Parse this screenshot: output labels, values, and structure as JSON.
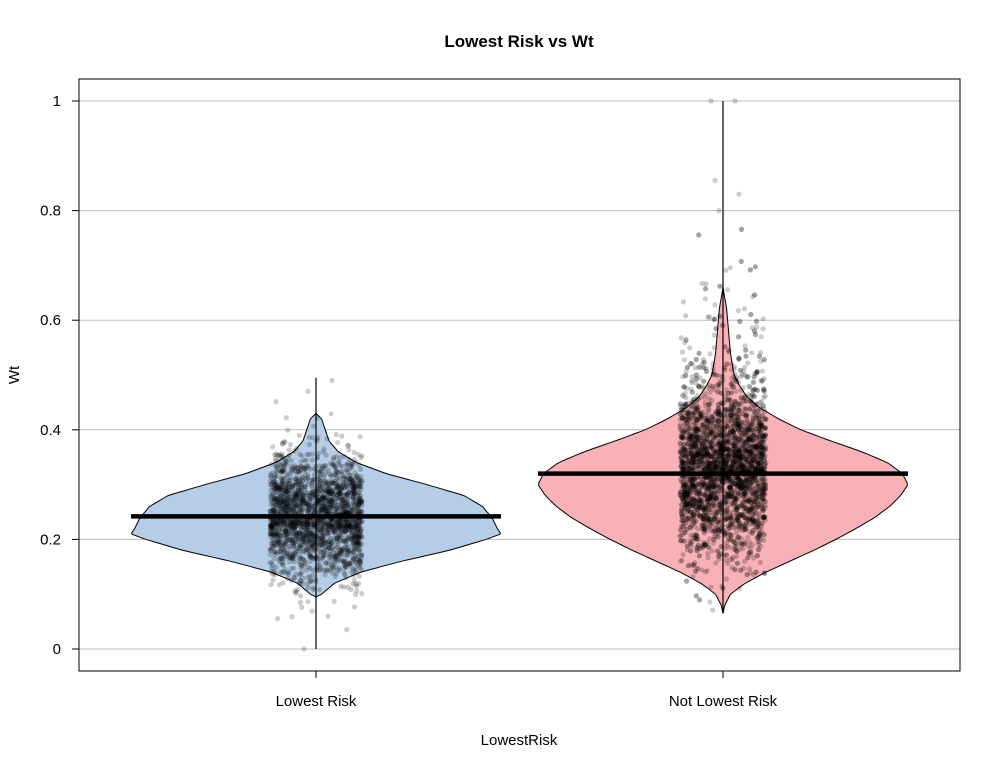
{
  "chart_data": {
    "type": "violin",
    "title": "Lowest Risk vs Wt",
    "xlabel": "LowestRisk",
    "ylabel": "Wt",
    "ylim": [
      -0.04,
      1.04
    ],
    "yticks": [
      "0",
      "0.2",
      "0.4",
      "0.6",
      "0.8",
      "1"
    ],
    "yticks_values": [
      0,
      0.2,
      0.4,
      0.6,
      0.8,
      1
    ],
    "grid": true,
    "categories": [
      "Lowest Risk",
      "Not Lowest Risk"
    ],
    "groups": [
      {
        "name": "Lowest Risk",
        "color": "#b5cde6",
        "mean": 0.242,
        "min": 0.0,
        "max": 0.495,
        "density_profile": [
          [
            0.095,
            0.0
          ],
          [
            0.1,
            0.03
          ],
          [
            0.12,
            0.1
          ],
          [
            0.14,
            0.24
          ],
          [
            0.16,
            0.46
          ],
          [
            0.18,
            0.72
          ],
          [
            0.2,
            0.92
          ],
          [
            0.21,
            1.0
          ],
          [
            0.22,
            0.98
          ],
          [
            0.24,
            0.95
          ],
          [
            0.26,
            0.9
          ],
          [
            0.28,
            0.8
          ],
          [
            0.3,
            0.6
          ],
          [
            0.32,
            0.38
          ],
          [
            0.34,
            0.22
          ],
          [
            0.36,
            0.12
          ],
          [
            0.38,
            0.07
          ],
          [
            0.4,
            0.05
          ],
          [
            0.42,
            0.03
          ],
          [
            0.43,
            0.0
          ]
        ]
      },
      {
        "name": "Not Lowest Risk",
        "color": "#f8b1b6",
        "mean": 0.32,
        "min": 0.065,
        "max": 1.0,
        "density_profile": [
          [
            0.065,
            0.0
          ],
          [
            0.08,
            0.01
          ],
          [
            0.1,
            0.04
          ],
          [
            0.12,
            0.12
          ],
          [
            0.14,
            0.23
          ],
          [
            0.16,
            0.36
          ],
          [
            0.18,
            0.49
          ],
          [
            0.2,
            0.61
          ],
          [
            0.22,
            0.72
          ],
          [
            0.24,
            0.82
          ],
          [
            0.26,
            0.9
          ],
          [
            0.28,
            0.96
          ],
          [
            0.3,
            1.0
          ],
          [
            0.32,
            0.97
          ],
          [
            0.34,
            0.89
          ],
          [
            0.36,
            0.75
          ],
          [
            0.38,
            0.58
          ],
          [
            0.4,
            0.42
          ],
          [
            0.42,
            0.3
          ],
          [
            0.44,
            0.2
          ],
          [
            0.46,
            0.13
          ],
          [
            0.48,
            0.09
          ],
          [
            0.5,
            0.06
          ],
          [
            0.54,
            0.04
          ],
          [
            0.58,
            0.03
          ],
          [
            0.62,
            0.02
          ],
          [
            0.66,
            0.0
          ]
        ]
      }
    ]
  }
}
